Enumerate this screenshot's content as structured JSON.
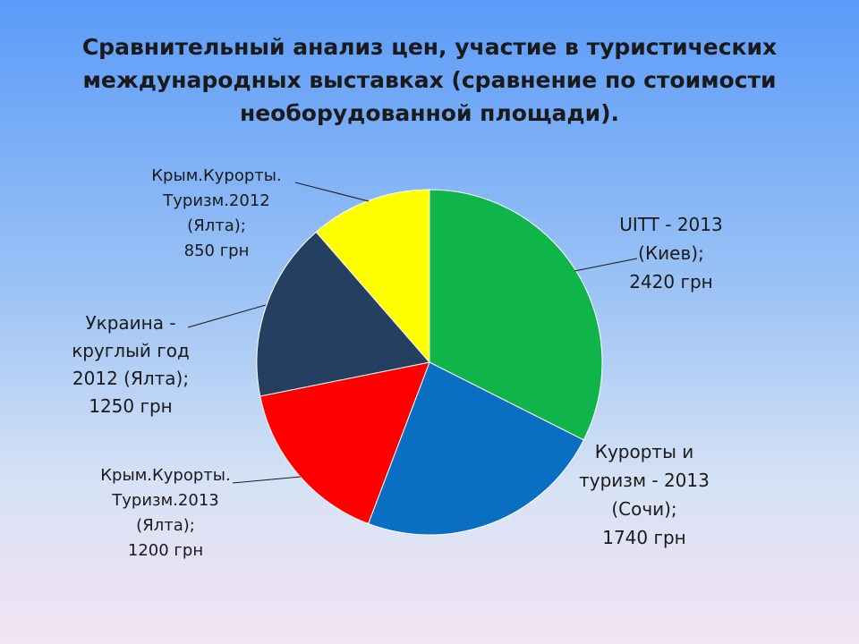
{
  "title_lines": [
    "Сравнительный анализ цен, участие в туристических",
    "международных выставках (сравнение по стоимости",
    "необорудованной площади)."
  ],
  "chart_data": {
    "type": "pie",
    "title": "Сравнительный анализ цен, участие в туристических международных выставках (сравнение по стоимости необорудованной площади).",
    "slices": [
      {
        "value": 2420,
        "color": "#10b54a",
        "label": [
          "UITT - 2013",
          "(Киев);",
          "2420 грн"
        ]
      },
      {
        "value": 1740,
        "color": "#0a6fc2",
        "label": [
          "Курорты и",
          "туризм - 2013",
          "(Сочи);",
          "1740 грн"
        ]
      },
      {
        "value": 1200,
        "color": "#ff0000",
        "label": [
          "Крым.Курорты.",
          "Туризм.2013",
          "(Ялта);",
          "1200 грн"
        ]
      },
      {
        "value": 1250,
        "color": "#243f60",
        "label": [
          "Украина -",
          "круглый год",
          "2012 (Ялта);",
          "1250 грн"
        ]
      },
      {
        "value": 850,
        "color": "#ffff00",
        "label": [
          "Крым.Курорты.",
          "Туризм.2012",
          "(Ялта);",
          "850 грн"
        ]
      }
    ],
    "legend": "none"
  }
}
